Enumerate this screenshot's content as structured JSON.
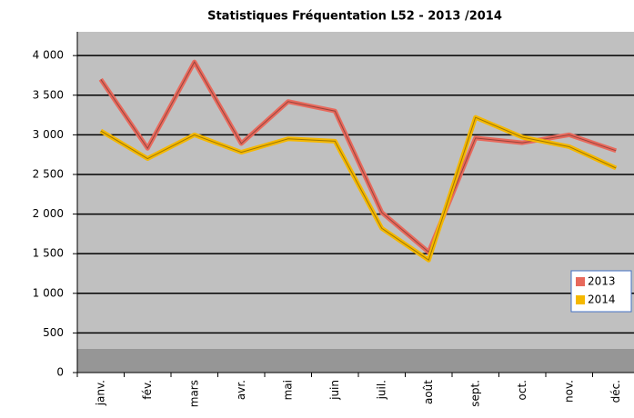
{
  "chart_data": {
    "type": "line",
    "title": "Statistiques Fréquentation L52 - 2013 /2014",
    "categories": [
      "janv.",
      "fév.",
      "mars",
      "avr.",
      "mai",
      "juin",
      "juil.",
      "août",
      "sept.",
      "oct.",
      "nov.",
      "déc."
    ],
    "series": [
      {
        "name": "2013",
        "color": "#e8695c",
        "values": [
          3700,
          2830,
          3920,
          2890,
          3420,
          3300,
          2020,
          1520,
          2960,
          2900,
          3000,
          2800
        ]
      },
      {
        "name": "2014",
        "color": "#f5b800",
        "values": [
          3050,
          2700,
          3000,
          2780,
          2950,
          2920,
          1820,
          1420,
          3220,
          2970,
          2850,
          2580
        ]
      }
    ],
    "ylim": [
      0,
      4300
    ],
    "yticks": [
      0,
      500,
      {
        "value": 1000,
        "label": "1 000"
      },
      {
        "value": 1500,
        "label": "1 500"
      },
      {
        "value": 2000,
        "label": "2 000"
      },
      {
        "value": 2500,
        "label": "2 500"
      },
      {
        "value": 3000,
        "label": "3 000"
      },
      {
        "value": 3500,
        "label": "3 500"
      },
      {
        "value": 4000,
        "label": "4 000"
      }
    ],
    "grid": true,
    "legend": "right"
  }
}
